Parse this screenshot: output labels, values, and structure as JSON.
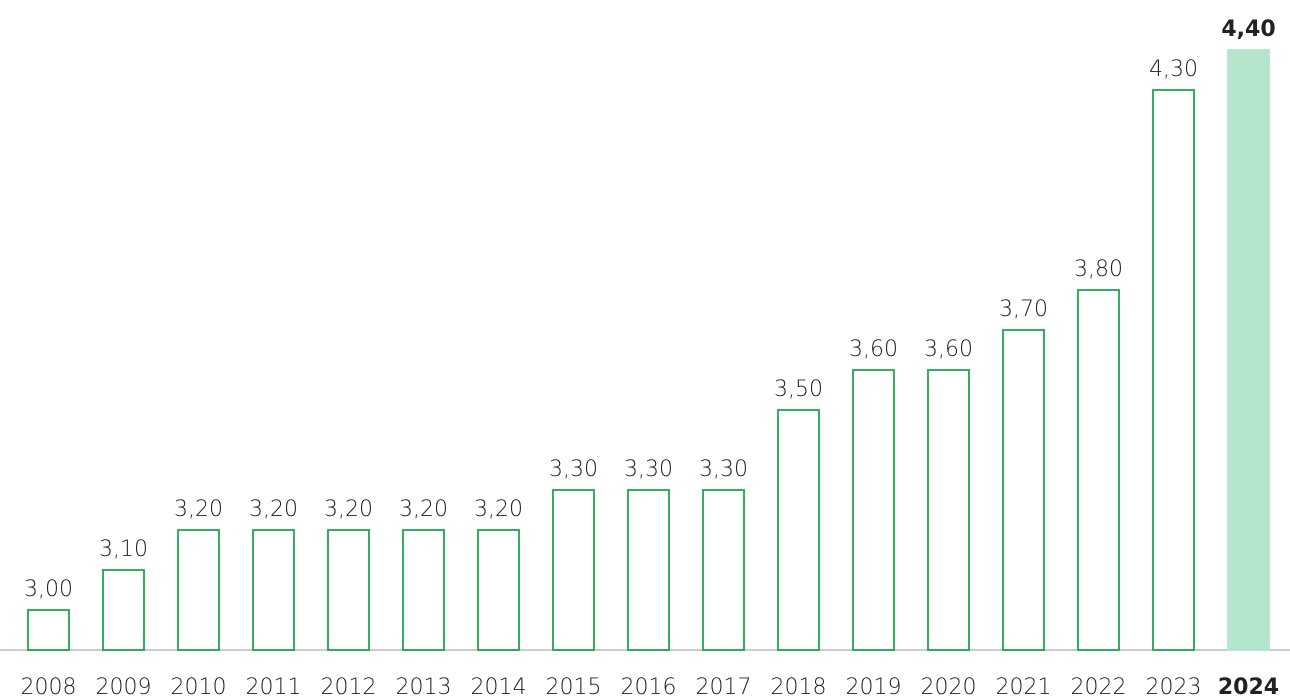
{
  "chart_data": {
    "type": "bar",
    "categories": [
      "2008",
      "2009",
      "2010",
      "2011",
      "2012",
      "2013",
      "2014",
      "2015",
      "2016",
      "2017",
      "2018",
      "2019",
      "2020",
      "2021",
      "2022",
      "2023",
      "2024"
    ],
    "values": [
      3.0,
      3.1,
      3.2,
      3.2,
      3.2,
      3.2,
      3.2,
      3.3,
      3.3,
      3.3,
      3.5,
      3.6,
      3.6,
      3.7,
      3.8,
      4.3,
      4.4
    ],
    "value_labels": [
      "3,00",
      "3,10",
      "3,20",
      "3,20",
      "3,20",
      "3,20",
      "3,20",
      "3,30",
      "3,30",
      "3,30",
      "3,50",
      "3,60",
      "3,60",
      "3,70",
      "3,80",
      "4,30",
      "4,40"
    ],
    "colors": [
      "none",
      "none",
      "none",
      "none",
      "none",
      "none",
      "none",
      "none",
      "none",
      "none",
      "none",
      "none",
      "none",
      "none",
      "none",
      "none",
      "#b3e6cc"
    ],
    "edge_color": "#1fa64f",
    "ylim": [
      2.9,
      4.4
    ]
  }
}
